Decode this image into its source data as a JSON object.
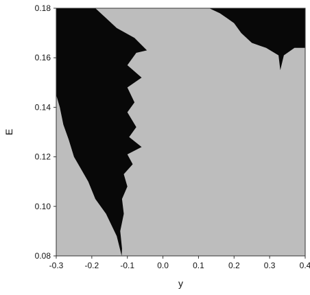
{
  "chart_data": {
    "type": "heatmap",
    "xlabel": "y",
    "ylabel": "E",
    "xlim": [
      -0.3,
      0.4
    ],
    "ylim": [
      0.08,
      0.18
    ],
    "x_ticks": [
      "-0.3",
      "-0.2",
      "-0.1",
      "0.0",
      "0.1",
      "0.2",
      "0.3",
      "0.4"
    ],
    "y_ticks": [
      "0.08",
      "0.10",
      "0.12",
      "0.14",
      "0.16",
      "0.18"
    ],
    "grid": false,
    "legend": "none",
    "colors": {
      "background": "#bdbdbd",
      "region": "#080808"
    },
    "regions": [
      {
        "polygon": [
          [
            -0.3,
            0.18
          ],
          [
            -0.19,
            0.18
          ],
          [
            -0.16,
            0.176
          ],
          [
            -0.13,
            0.172
          ],
          [
            -0.08,
            0.168
          ],
          [
            -0.045,
            0.163
          ],
          [
            -0.075,
            0.162
          ],
          [
            -0.1,
            0.157
          ],
          [
            -0.06,
            0.152
          ],
          [
            -0.1,
            0.148
          ],
          [
            -0.08,
            0.142
          ],
          [
            -0.1,
            0.138
          ],
          [
            -0.075,
            0.132
          ],
          [
            -0.095,
            0.128
          ],
          [
            -0.06,
            0.124
          ],
          [
            -0.1,
            0.121
          ],
          [
            -0.085,
            0.117
          ],
          [
            -0.11,
            0.113
          ],
          [
            -0.1,
            0.108
          ],
          [
            -0.115,
            0.103
          ],
          [
            -0.11,
            0.097
          ],
          [
            -0.12,
            0.09
          ],
          [
            -0.115,
            0.083
          ],
          [
            -0.116,
            0.08
          ],
          [
            -0.13,
            0.088
          ],
          [
            -0.16,
            0.097
          ],
          [
            -0.19,
            0.103
          ],
          [
            -0.21,
            0.11
          ],
          [
            -0.23,
            0.115
          ],
          [
            -0.25,
            0.12
          ],
          [
            -0.265,
            0.127
          ],
          [
            -0.28,
            0.133
          ],
          [
            -0.29,
            0.14
          ],
          [
            -0.3,
            0.145
          ]
        ]
      },
      {
        "polygon": [
          [
            0.13,
            0.18
          ],
          [
            0.4,
            0.18
          ],
          [
            0.4,
            0.164
          ],
          [
            0.37,
            0.164
          ],
          [
            0.34,
            0.161
          ],
          [
            0.33,
            0.155
          ],
          [
            0.325,
            0.161
          ],
          [
            0.29,
            0.164
          ],
          [
            0.25,
            0.166
          ],
          [
            0.22,
            0.17
          ],
          [
            0.2,
            0.174
          ],
          [
            0.18,
            0.176
          ],
          [
            0.16,
            0.178
          ]
        ]
      }
    ]
  }
}
